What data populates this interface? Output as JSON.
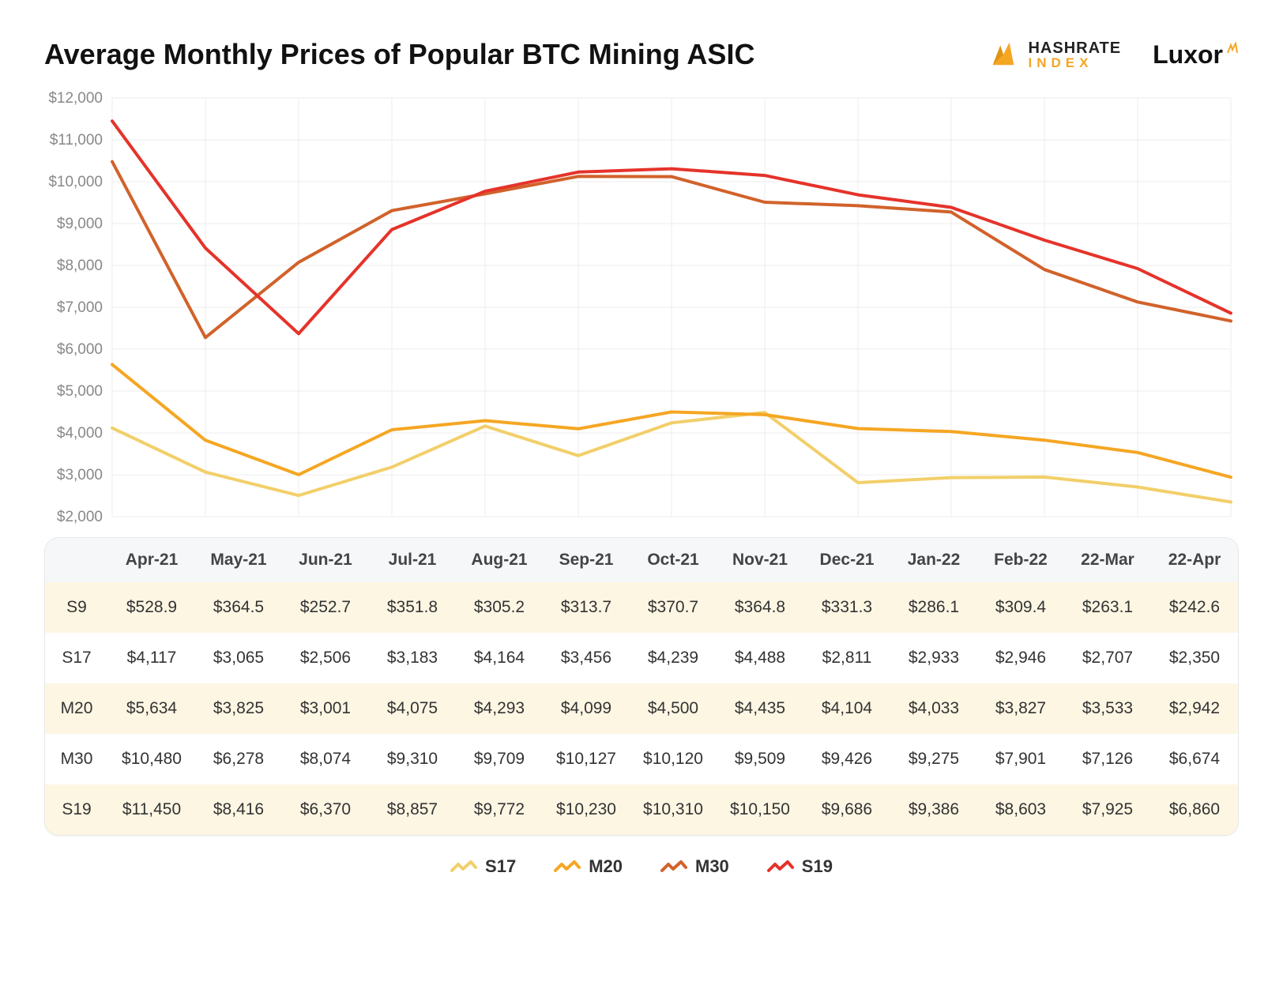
{
  "title": "Average Monthly Prices of Popular BTC Mining ASIC",
  "logos": {
    "hashrate_top": "HASHRATE",
    "hashrate_bottom": "INDEX",
    "luxor": "Luxor"
  },
  "chart": {
    "type": "line",
    "background_color": "#ffffff",
    "grid_color": "#ececec",
    "axis_color": "#dcdcdc",
    "tick_font_size": 19,
    "tick_color": "#888888",
    "categories": [
      "Apr-21",
      "May-21",
      "Jun-21",
      "Jul-21",
      "Aug-21",
      "Sep-21",
      "Oct-21",
      "Nov-21",
      "Dec-21",
      "Jan-22",
      "Feb-22",
      "22-Mar",
      "22-Apr"
    ],
    "ylim": [
      2000,
      12000
    ],
    "ytick_step": 1000,
    "ytick_labels": [
      "$2,000",
      "$3,000",
      "$4,000",
      "$5,000",
      "$6,000",
      "$7,000",
      "$8,000",
      "$9,000",
      "$10,000",
      "$11,000",
      "$12,000"
    ],
    "line_width": 4,
    "series": [
      {
        "name": "S17",
        "color": "#f2cf6a",
        "values": [
          4117,
          3065,
          2506,
          3183,
          4164,
          3456,
          4239,
          4488,
          2811,
          2933,
          2946,
          2707,
          2350
        ]
      },
      {
        "name": "M20",
        "color": "#f5a623",
        "values": [
          5634,
          3825,
          3001,
          4075,
          4293,
          4099,
          4500,
          4435,
          4104,
          4033,
          3827,
          3533,
          2942
        ]
      },
      {
        "name": "M30",
        "color": "#d1622b",
        "values": [
          10480,
          6278,
          8074,
          9310,
          9709,
          10127,
          10120,
          9509,
          9426,
          9275,
          7901,
          7126,
          6674
        ]
      },
      {
        "name": "S19",
        "color": "#e5332a",
        "values": [
          11450,
          8416,
          6370,
          8857,
          9772,
          10230,
          10310,
          10150,
          9686,
          9386,
          8603,
          7925,
          6860
        ]
      }
    ]
  },
  "table": {
    "columns": [
      "",
      "Apr-21",
      "May-21",
      "Jun-21",
      "Jul-21",
      "Aug-21",
      "Sep-21",
      "Oct-21",
      "Nov-21",
      "Dec-21",
      "Jan-22",
      "Feb-22",
      "22-Mar",
      "22-Apr"
    ],
    "rows": [
      {
        "label": "S9",
        "cells": [
          "$528.9",
          "$364.5",
          "$252.7",
          "$351.8",
          "$305.2",
          "$313.7",
          "$370.7",
          "$364.8",
          "$331.3",
          "$286.1",
          "$309.4",
          "$263.1",
          "$242.6"
        ]
      },
      {
        "label": "S17",
        "cells": [
          "$4,117",
          "$3,065",
          "$2,506",
          "$3,183",
          "$4,164",
          "$3,456",
          "$4,239",
          "$4,488",
          "$2,811",
          "$2,933",
          "$2,946",
          "$2,707",
          "$2,350"
        ]
      },
      {
        "label": "M20",
        "cells": [
          "$5,634",
          "$3,825",
          "$3,001",
          "$4,075",
          "$4,293",
          "$4,099",
          "$4,500",
          "$4,435",
          "$4,104",
          "$4,033",
          "$3,827",
          "$3,533",
          "$2,942"
        ]
      },
      {
        "label": "M30",
        "cells": [
          "$10,480",
          "$6,278",
          "$8,074",
          "$9,310",
          "$9,709",
          "$10,127",
          "$10,120",
          "$9,509",
          "$9,426",
          "$9,275",
          "$7,901",
          "$7,126",
          "$6,674"
        ]
      },
      {
        "label": "S19",
        "cells": [
          "$11,450",
          "$8,416",
          "$6,370",
          "$8,857",
          "$9,772",
          "$10,230",
          "$10,310",
          "$10,150",
          "$9,686",
          "$9,386",
          "$8,603",
          "$7,925",
          "$6,860"
        ]
      }
    ],
    "stripe_color": "#fdf6e3",
    "header_bg": "#f6f7f9",
    "cell_font_size": 21
  },
  "legend": {
    "font_size": 22,
    "items": [
      {
        "name": "S17",
        "color": "#f2cf6a"
      },
      {
        "name": "M20",
        "color": "#f5a623"
      },
      {
        "name": "M30",
        "color": "#d1622b"
      },
      {
        "name": "S19",
        "color": "#e5332a"
      }
    ]
  }
}
